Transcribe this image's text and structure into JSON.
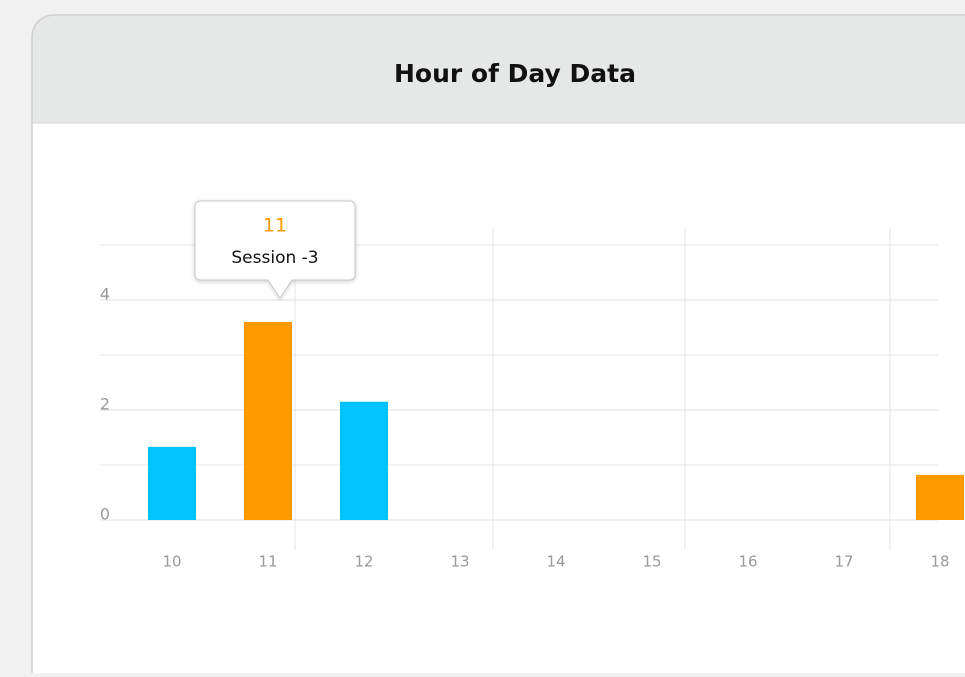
{
  "chart_data": {
    "type": "bar",
    "title": "Hour of Day Data",
    "categories": [
      "10",
      "11",
      "12",
      "13",
      "14",
      "15",
      "16",
      "17",
      "18"
    ],
    "values": [
      1.33,
      3.6,
      2.15,
      0,
      0,
      0,
      0,
      0,
      0.82
    ],
    "colors": [
      "#00c3ff",
      "#ff9900",
      "#00c3ff",
      "#00c3ff",
      "#00c3ff",
      "#00c3ff",
      "#00c3ff",
      "#00c3ff",
      "#ff9900"
    ],
    "ylim": [
      0,
      5
    ],
    "yticks": [
      0,
      2,
      4
    ],
    "minor_yticks": [
      1,
      3,
      5
    ],
    "grid": true,
    "tooltip": {
      "title": "11",
      "text": "Session -3"
    }
  }
}
